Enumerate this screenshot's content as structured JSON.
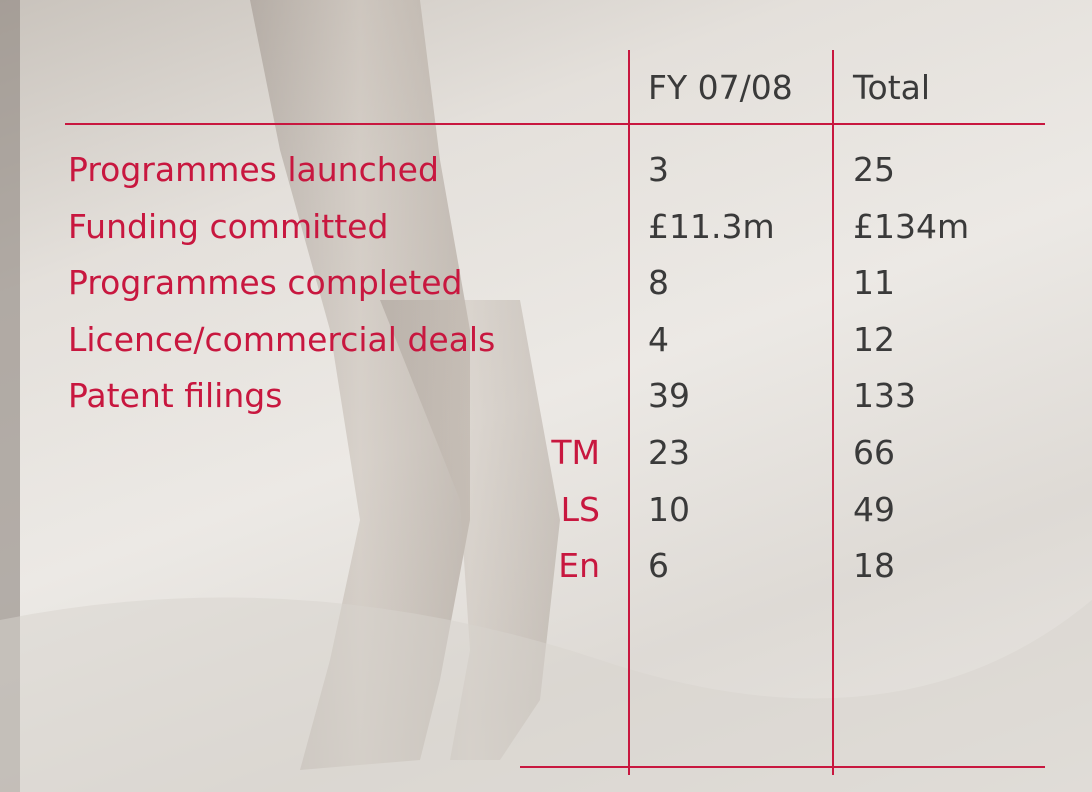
{
  "table": {
    "columns": [
      "FY 07/08",
      "Total"
    ],
    "rows": [
      {
        "label": "Programmes launched",
        "cells": [
          "3",
          "25"
        ]
      },
      {
        "label": "Funding committed",
        "cells": [
          "£11.3m",
          "£134m"
        ]
      },
      {
        "label": "Programmes completed",
        "cells": [
          "8",
          "11"
        ]
      },
      {
        "label": "Licence/commercial deals",
        "cells": [
          "4",
          "12"
        ]
      },
      {
        "label": "Patent filings",
        "cells": [
          "39",
          "133"
        ]
      }
    ],
    "patent_breakdown": [
      {
        "label": "TM",
        "cells": [
          "23",
          "66"
        ]
      },
      {
        "label": "LS",
        "cells": [
          "10",
          "49"
        ]
      },
      {
        "label": "En",
        "cells": [
          "6",
          "18"
        ]
      }
    ]
  }
}
